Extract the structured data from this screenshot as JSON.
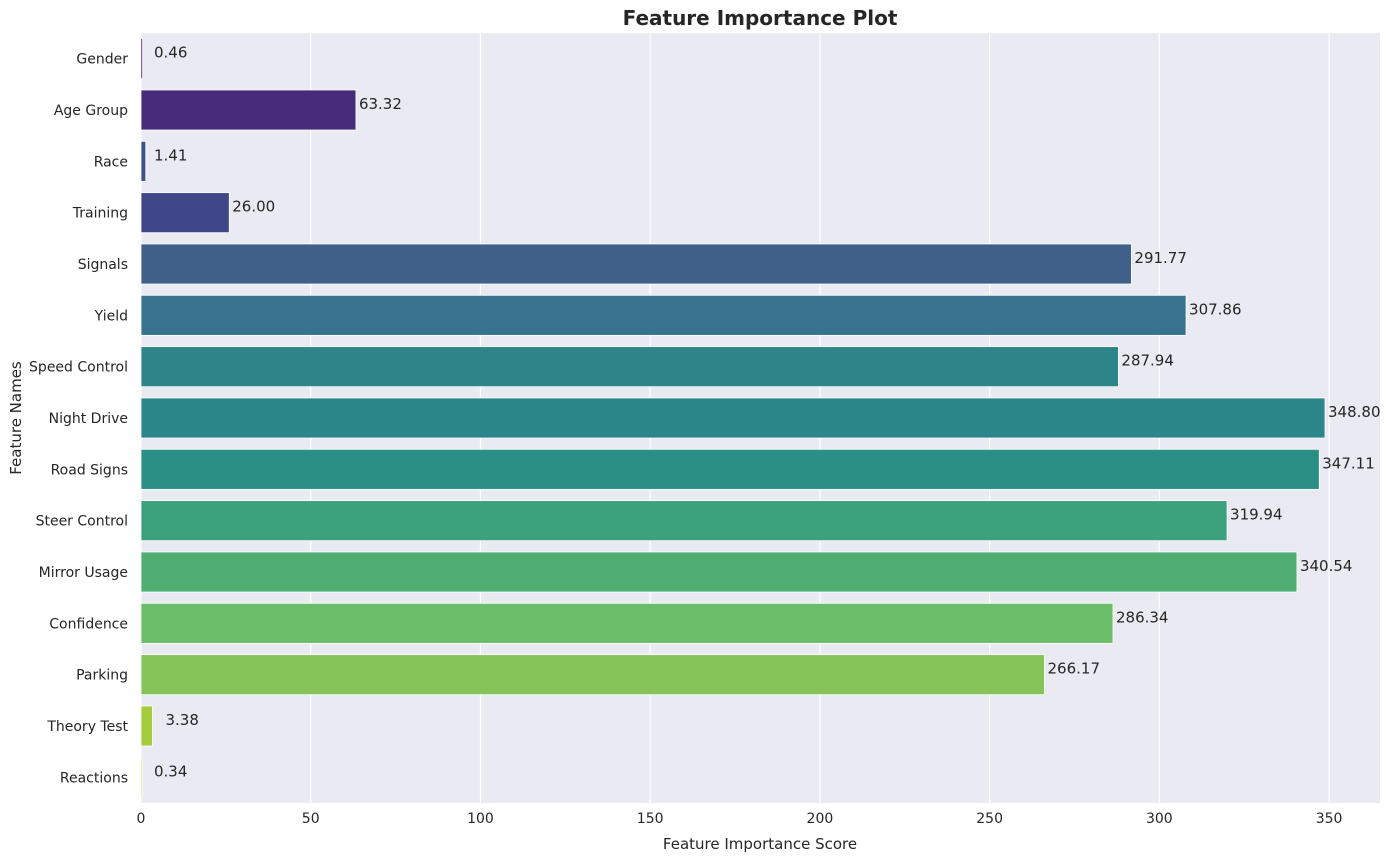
{
  "chart_data": {
    "type": "bar",
    "orientation": "horizontal",
    "title": "Feature Importance Plot",
    "xlabel": "Feature Importance Score",
    "ylabel": "Feature Names",
    "xlim": [
      0,
      365
    ],
    "xticks": [
      0,
      50,
      100,
      150,
      200,
      250,
      300,
      350
    ],
    "grid": true,
    "categories": [
      "Gender",
      "Age Group",
      "Race",
      "Training",
      "Signals",
      "Yield",
      "Speed Control",
      "Night Drive",
      "Road Signs",
      "Steer Control",
      "Mirror Usage",
      "Confidence",
      "Parking",
      "Theory Test",
      "Reactions"
    ],
    "values": [
      0.46,
      63.32,
      1.41,
      26.0,
      291.77,
      307.86,
      287.94,
      348.8,
      347.11,
      319.94,
      340.54,
      286.34,
      266.17,
      3.38,
      0.34
    ],
    "data_labels": [
      "0.46",
      "63.32",
      "1.41",
      "26.00",
      "291.77",
      "307.86",
      "287.94",
      "348.80",
      "347.11",
      "319.94",
      "340.54",
      "286.34",
      "266.17",
      "3.38",
      "0.34"
    ],
    "colors": [
      "#440154",
      "#472c7a",
      "#3b528b",
      "#3f4788",
      "#3e6089",
      "#37728e",
      "#2d8489",
      "#2b878a",
      "#2a8f85",
      "#3ca17d",
      "#51ae72",
      "#6bbd69",
      "#86c45a",
      "#a3cd3e",
      "#d0e11c"
    ],
    "background": "#eaeaf2"
  }
}
